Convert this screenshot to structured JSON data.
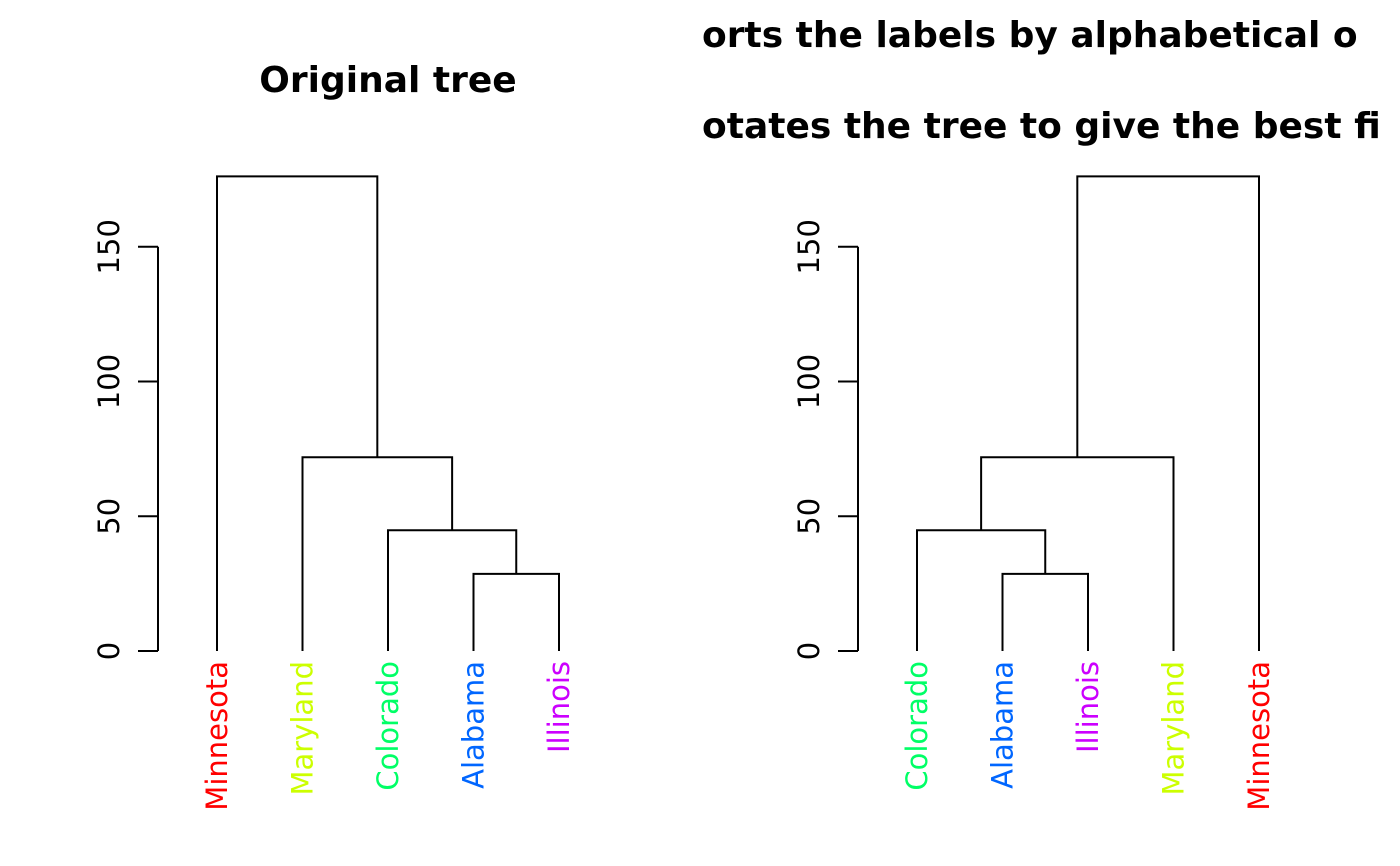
{
  "chart_data": [
    {
      "type": "dendrogram",
      "title": "Original tree",
      "y_ticks": [
        0,
        50,
        100,
        150
      ],
      "ylim": [
        0,
        176
      ],
      "grid": false,
      "leaves": [
        {
          "label": "Minnesota",
          "color": "#FF0000"
        },
        {
          "label": "Maryland",
          "color": "#CCFF00"
        },
        {
          "label": "Colorado",
          "color": "#00FF66"
        },
        {
          "label": "Alabama",
          "color": "#0066FF"
        },
        {
          "label": "Illinois",
          "color": "#CC00FF"
        }
      ],
      "merges": [
        {
          "left": "leaf:3",
          "right": "leaf:4",
          "height": 28.6
        },
        {
          "left": "leaf:2",
          "right": "node:0",
          "height": 44.8
        },
        {
          "left": "leaf:1",
          "right": "node:1",
          "height": 71.9
        },
        {
          "left": "leaf:0",
          "right": "node:2",
          "height": 176.1
        }
      ]
    },
    {
      "type": "dendrogram",
      "title_lines": [
        "orts the labels by alphabetical o",
        "otates the tree to give the best fi"
      ],
      "y_ticks": [
        0,
        50,
        100,
        150
      ],
      "ylim": [
        0,
        176
      ],
      "grid": false,
      "leaves": [
        {
          "label": "Colorado",
          "color": "#00FF66"
        },
        {
          "label": "Alabama",
          "color": "#0066FF"
        },
        {
          "label": "Illinois",
          "color": "#CC00FF"
        },
        {
          "label": "Maryland",
          "color": "#CCFF00"
        },
        {
          "label": "Minnesota",
          "color": "#FF0000"
        }
      ],
      "merges": [
        {
          "left": "leaf:1",
          "right": "leaf:2",
          "height": 28.6
        },
        {
          "left": "leaf:0",
          "right": "node:0",
          "height": 44.8
        },
        {
          "left": "node:1",
          "right": "leaf:3",
          "height": 71.9
        },
        {
          "left": "node:2",
          "right": "leaf:4",
          "height": 176.1
        }
      ]
    }
  ]
}
